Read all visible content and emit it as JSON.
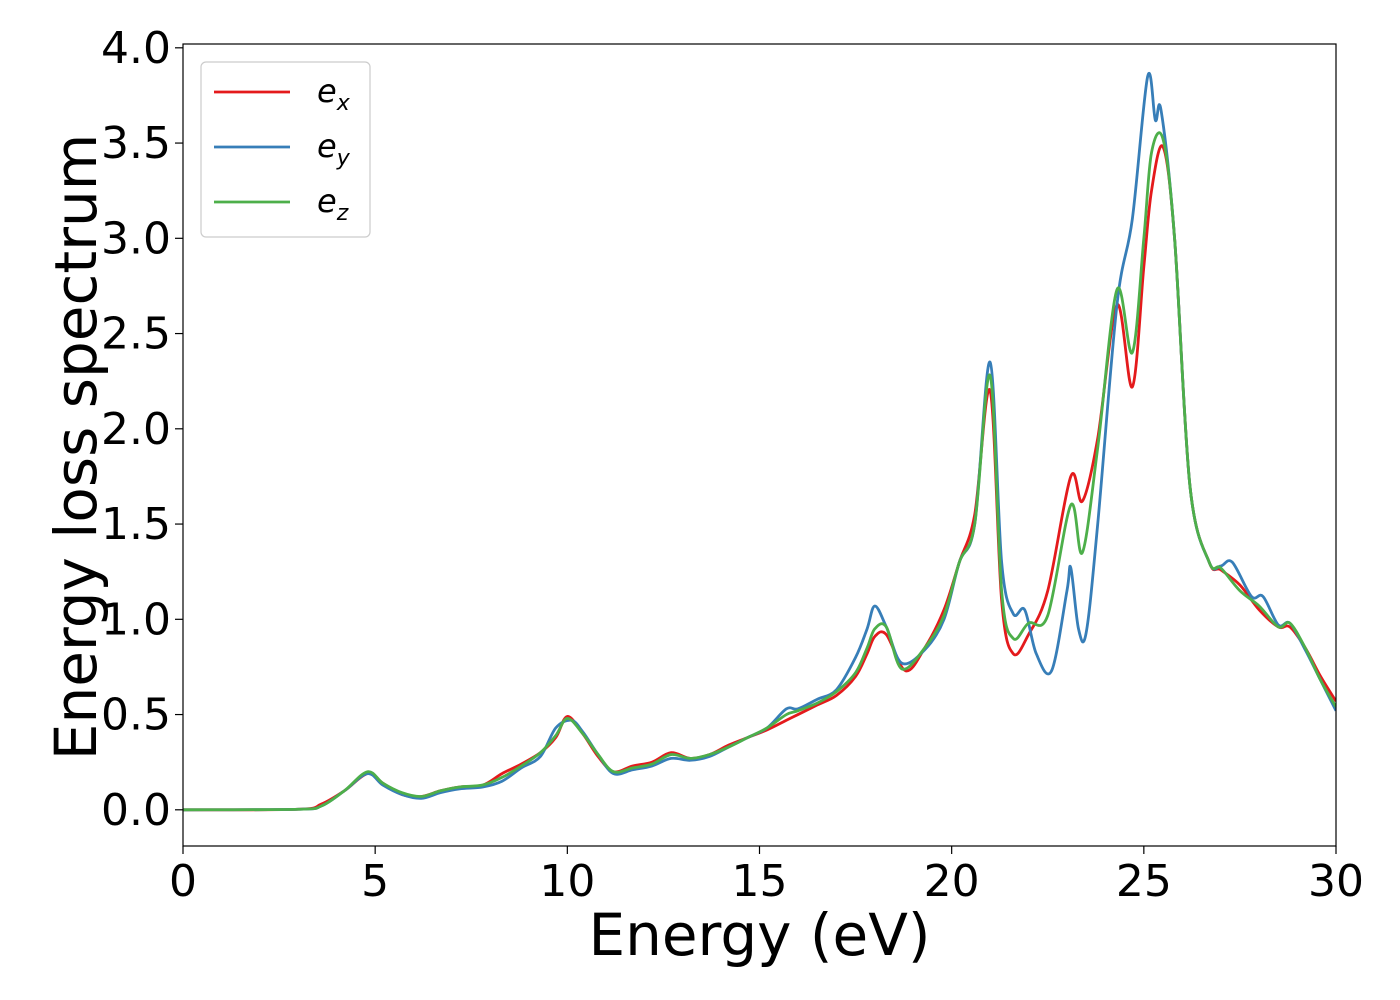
{
  "chart_data": {
    "type": "line",
    "title": "",
    "xlabel": "Energy (eV)",
    "ylabel": "Energy loss spectrum",
    "xlim": [
      0,
      30
    ],
    "ylim": [
      -0.19,
      4.02
    ],
    "xticks": [
      "0",
      "5",
      "10",
      "15",
      "20",
      "25",
      "30"
    ],
    "yticks": [
      "0.0",
      "0.5",
      "1.0",
      "1.5",
      "2.0",
      "2.5",
      "3.0",
      "3.5",
      "4.0"
    ],
    "grid": false,
    "legend": "top-left",
    "series": [
      {
        "name": "e",
        "subscript": "x",
        "color": "#e41a1c",
        "points": [
          [
            0,
            0
          ],
          [
            3,
            0.003
          ],
          [
            3.6,
            0.03
          ],
          [
            4.2,
            0.1
          ],
          [
            4.8,
            0.19
          ],
          [
            5.2,
            0.14
          ],
          [
            5.7,
            0.08
          ],
          [
            6.2,
            0.07
          ],
          [
            6.7,
            0.1
          ],
          [
            7.2,
            0.12
          ],
          [
            7.8,
            0.13
          ],
          [
            8.3,
            0.19
          ],
          [
            8.8,
            0.24
          ],
          [
            9.3,
            0.3
          ],
          [
            9.7,
            0.38
          ],
          [
            10.0,
            0.49
          ],
          [
            10.4,
            0.4
          ],
          [
            10.8,
            0.28
          ],
          [
            11.2,
            0.2
          ],
          [
            11.7,
            0.23
          ],
          [
            12.2,
            0.25
          ],
          [
            12.7,
            0.3
          ],
          [
            13.2,
            0.27
          ],
          [
            13.7,
            0.29
          ],
          [
            14.2,
            0.34
          ],
          [
            14.7,
            0.38
          ],
          [
            15.2,
            0.42
          ],
          [
            15.7,
            0.47
          ],
          [
            16.0,
            0.5
          ],
          [
            16.5,
            0.55
          ],
          [
            17.0,
            0.6
          ],
          [
            17.5,
            0.7
          ],
          [
            17.8,
            0.82
          ],
          [
            18.0,
            0.91
          ],
          [
            18.3,
            0.92
          ],
          [
            18.8,
            0.73
          ],
          [
            19.3,
            0.85
          ],
          [
            19.8,
            1.05
          ],
          [
            20.2,
            1.3
          ],
          [
            20.6,
            1.55
          ],
          [
            21.0,
            2.2
          ],
          [
            21.3,
            1.1
          ],
          [
            21.6,
            0.82
          ],
          [
            22.0,
            0.92
          ],
          [
            22.5,
            1.15
          ],
          [
            23.1,
            1.75
          ],
          [
            23.4,
            1.62
          ],
          [
            23.8,
            1.95
          ],
          [
            24.3,
            2.65
          ],
          [
            24.7,
            2.22
          ],
          [
            25.0,
            2.85
          ],
          [
            25.2,
            3.25
          ],
          [
            25.5,
            3.48
          ],
          [
            25.8,
            3.0
          ],
          [
            26.2,
            1.7
          ],
          [
            26.7,
            1.3
          ],
          [
            27.0,
            1.26
          ],
          [
            27.5,
            1.18
          ],
          [
            28.0,
            1.05
          ],
          [
            28.5,
            0.96
          ],
          [
            28.8,
            0.96
          ],
          [
            29.2,
            0.85
          ],
          [
            29.6,
            0.7
          ],
          [
            30.0,
            0.57
          ]
        ]
      },
      {
        "name": "e",
        "subscript": "y",
        "color": "#377eb8",
        "points": [
          [
            0,
            0
          ],
          [
            3,
            0.003
          ],
          [
            3.6,
            0.02
          ],
          [
            4.2,
            0.1
          ],
          [
            4.8,
            0.19
          ],
          [
            5.2,
            0.13
          ],
          [
            5.7,
            0.08
          ],
          [
            6.2,
            0.06
          ],
          [
            6.7,
            0.09
          ],
          [
            7.2,
            0.11
          ],
          [
            7.8,
            0.12
          ],
          [
            8.3,
            0.15
          ],
          [
            8.8,
            0.22
          ],
          [
            9.3,
            0.28
          ],
          [
            9.7,
            0.43
          ],
          [
            10.1,
            0.47
          ],
          [
            10.4,
            0.41
          ],
          [
            10.8,
            0.29
          ],
          [
            11.2,
            0.19
          ],
          [
            11.7,
            0.21
          ],
          [
            12.2,
            0.23
          ],
          [
            12.7,
            0.27
          ],
          [
            13.2,
            0.26
          ],
          [
            13.7,
            0.28
          ],
          [
            14.2,
            0.33
          ],
          [
            14.7,
            0.38
          ],
          [
            15.2,
            0.43
          ],
          [
            15.7,
            0.53
          ],
          [
            16.0,
            0.53
          ],
          [
            16.5,
            0.58
          ],
          [
            17.0,
            0.63
          ],
          [
            17.5,
            0.8
          ],
          [
            17.8,
            0.95
          ],
          [
            18.0,
            1.07
          ],
          [
            18.3,
            0.96
          ],
          [
            18.7,
            0.77
          ],
          [
            19.3,
            0.84
          ],
          [
            19.8,
            1.0
          ],
          [
            20.2,
            1.3
          ],
          [
            20.6,
            1.5
          ],
          [
            21.0,
            2.35
          ],
          [
            21.3,
            1.3
          ],
          [
            21.6,
            1.03
          ],
          [
            21.9,
            1.05
          ],
          [
            22.2,
            0.82
          ],
          [
            22.6,
            0.73
          ],
          [
            23.0,
            1.15
          ],
          [
            23.1,
            1.27
          ],
          [
            23.3,
            0.95
          ],
          [
            23.5,
            0.93
          ],
          [
            23.8,
            1.5
          ],
          [
            24.3,
            2.65
          ],
          [
            24.7,
            3.1
          ],
          [
            25.1,
            3.85
          ],
          [
            25.3,
            3.62
          ],
          [
            25.45,
            3.67
          ],
          [
            25.8,
            3.0
          ],
          [
            26.2,
            1.7
          ],
          [
            26.7,
            1.3
          ],
          [
            27.0,
            1.28
          ],
          [
            27.3,
            1.3
          ],
          [
            27.8,
            1.12
          ],
          [
            28.1,
            1.12
          ],
          [
            28.5,
            0.97
          ],
          [
            28.8,
            0.98
          ],
          [
            29.2,
            0.84
          ],
          [
            29.6,
            0.68
          ],
          [
            30.0,
            0.52
          ]
        ]
      },
      {
        "name": "e",
        "subscript": "z",
        "color": "#4daf4a",
        "points": [
          [
            0,
            0
          ],
          [
            3,
            0.003
          ],
          [
            3.6,
            0.02
          ],
          [
            4.2,
            0.1
          ],
          [
            4.8,
            0.2
          ],
          [
            5.2,
            0.14
          ],
          [
            5.7,
            0.09
          ],
          [
            6.2,
            0.07
          ],
          [
            6.7,
            0.1
          ],
          [
            7.2,
            0.12
          ],
          [
            7.8,
            0.13
          ],
          [
            8.3,
            0.17
          ],
          [
            8.8,
            0.23
          ],
          [
            9.3,
            0.3
          ],
          [
            9.7,
            0.39
          ],
          [
            10.0,
            0.48
          ],
          [
            10.4,
            0.4
          ],
          [
            10.8,
            0.29
          ],
          [
            11.2,
            0.2
          ],
          [
            11.7,
            0.22
          ],
          [
            12.2,
            0.24
          ],
          [
            12.7,
            0.29
          ],
          [
            13.2,
            0.27
          ],
          [
            13.7,
            0.29
          ],
          [
            14.2,
            0.33
          ],
          [
            14.7,
            0.38
          ],
          [
            15.2,
            0.43
          ],
          [
            15.7,
            0.5
          ],
          [
            16.0,
            0.52
          ],
          [
            16.5,
            0.56
          ],
          [
            17.0,
            0.62
          ],
          [
            17.5,
            0.72
          ],
          [
            17.8,
            0.85
          ],
          [
            18.0,
            0.95
          ],
          [
            18.3,
            0.96
          ],
          [
            18.7,
            0.74
          ],
          [
            19.3,
            0.85
          ],
          [
            19.8,
            1.02
          ],
          [
            20.2,
            1.3
          ],
          [
            20.6,
            1.5
          ],
          [
            21.0,
            2.28
          ],
          [
            21.3,
            1.15
          ],
          [
            21.6,
            0.9
          ],
          [
            22.0,
            0.98
          ],
          [
            22.5,
            1.02
          ],
          [
            23.1,
            1.6
          ],
          [
            23.4,
            1.35
          ],
          [
            23.8,
            1.9
          ],
          [
            24.3,
            2.73
          ],
          [
            24.7,
            2.4
          ],
          [
            25.0,
            3.0
          ],
          [
            25.2,
            3.45
          ],
          [
            25.5,
            3.52
          ],
          [
            25.8,
            3.0
          ],
          [
            26.2,
            1.7
          ],
          [
            26.7,
            1.3
          ],
          [
            27.0,
            1.27
          ],
          [
            27.5,
            1.15
          ],
          [
            28.0,
            1.07
          ],
          [
            28.5,
            0.96
          ],
          [
            28.8,
            0.98
          ],
          [
            29.2,
            0.85
          ],
          [
            29.6,
            0.68
          ],
          [
            30.0,
            0.54
          ]
        ]
      }
    ]
  }
}
